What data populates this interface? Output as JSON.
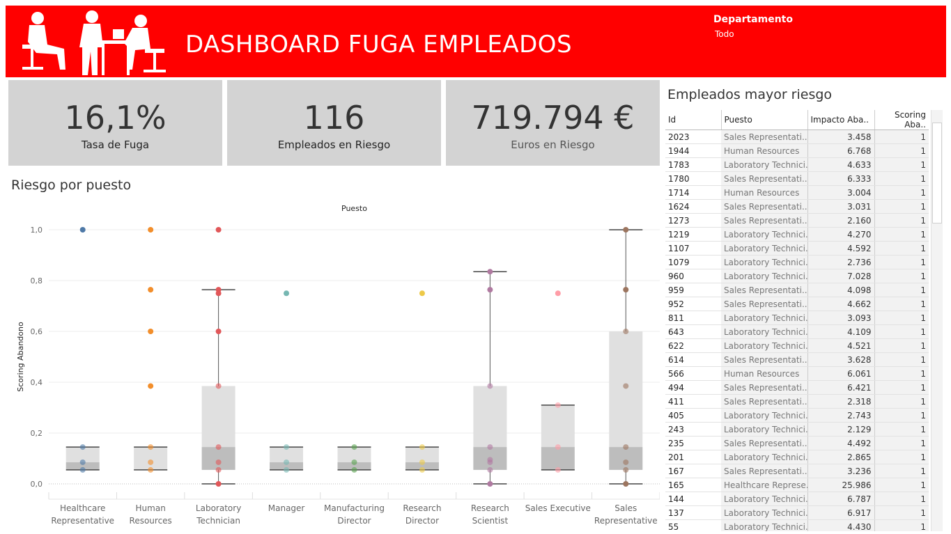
{
  "header": {
    "title": "DASHBOARD FUGA EMPLEADOS",
    "logo_icon": "office-workers-silhouette-logo",
    "background": "#ff0000"
  },
  "filter": {
    "label": "Departamento",
    "value": "Todo"
  },
  "kpis": [
    {
      "value": "16,1%",
      "label": "Tasa de Fuga"
    },
    {
      "value": "116",
      "label": "Empleados en Riesgo"
    },
    {
      "value": "719.794 €",
      "label": "Euros en Riesgo"
    }
  ],
  "chart_section_title": "Riesgo por puesto",
  "table_section_title": "Empleados mayor riesgo",
  "chart_data": {
    "type": "box",
    "title": "Puesto",
    "xlabel": "Puesto",
    "ylabel": "Scoring Abandono",
    "ylim": [
      0,
      1.0
    ],
    "yticks": [
      "0,0",
      "0,2",
      "0,4",
      "0,6",
      "0,8",
      "1,0"
    ],
    "categories": [
      {
        "name": "Healthcare Representative",
        "lines": [
          "Healthcare",
          "Representative"
        ],
        "color": "#4e79a7",
        "q0": 0.055,
        "q1": 0.055,
        "median": 0.085,
        "q3": 0.145,
        "q4": 0.145,
        "points": [
          1.0,
          0.145,
          0.085,
          0.055
        ]
      },
      {
        "name": "Human Resources",
        "lines": [
          "Human",
          "Resources"
        ],
        "color": "#f28e2b",
        "q0": 0.055,
        "q1": 0.055,
        "median": 0.055,
        "q3": 0.145,
        "q4": 0.145,
        "points": [
          1.0,
          0.764,
          0.6,
          0.385,
          0.145,
          0.085,
          0.055
        ]
      },
      {
        "name": "Laboratory Technician",
        "lines": [
          "Laboratory",
          "Technician"
        ],
        "color": "#e15759",
        "q0": 0.0,
        "q1": 0.055,
        "median": 0.145,
        "q3": 0.385,
        "q4": 0.764,
        "points": [
          1.0,
          0.764,
          0.75,
          0.6,
          0.385,
          0.145,
          0.085,
          0.055,
          0.0
        ]
      },
      {
        "name": "Manager",
        "lines": [
          "Manager"
        ],
        "color": "#76b7b2",
        "q0": 0.055,
        "q1": 0.055,
        "median": 0.085,
        "q3": 0.145,
        "q4": 0.145,
        "points": [
          0.75,
          0.145,
          0.085,
          0.055
        ]
      },
      {
        "name": "Manufacturing Director",
        "lines": [
          "Manufacturing",
          "Director"
        ],
        "color": "#59a14f",
        "q0": 0.055,
        "q1": 0.055,
        "median": 0.085,
        "q3": 0.145,
        "q4": 0.145,
        "points": [
          0.145,
          0.085,
          0.055
        ]
      },
      {
        "name": "Research Director",
        "lines": [
          "Research",
          "Director"
        ],
        "color": "#edc948",
        "q0": 0.055,
        "q1": 0.055,
        "median": 0.085,
        "q3": 0.145,
        "q4": 0.145,
        "points": [
          0.75,
          0.145,
          0.085,
          0.055
        ]
      },
      {
        "name": "Research Scientist",
        "lines": [
          "Research",
          "Scientist"
        ],
        "color": "#b07aa1",
        "q0": 0.0,
        "q1": 0.055,
        "median": 0.145,
        "q3": 0.385,
        "q4": 0.835,
        "points": [
          0.835,
          0.764,
          0.385,
          0.145,
          0.095,
          0.085,
          0.055,
          0.0
        ]
      },
      {
        "name": "Sales Executive",
        "lines": [
          "Sales Executive"
        ],
        "color": "#ff9da7",
        "q0": 0.055,
        "q1": 0.055,
        "median": 0.145,
        "q3": 0.31,
        "q4": 0.31,
        "points": [
          0.75,
          0.31,
          0.145,
          0.055
        ]
      },
      {
        "name": "Sales Representative",
        "lines": [
          "Sales",
          "Representative"
        ],
        "color": "#9c755f",
        "q0": 0.0,
        "q1": 0.055,
        "median": 0.145,
        "q3": 0.6,
        "q4": 1.0,
        "points": [
          1.0,
          0.764,
          0.6,
          0.385,
          0.145,
          0.085,
          0.055,
          0.0
        ]
      }
    ]
  },
  "table": {
    "columns": [
      "Id",
      "Puesto",
      "Impacto Aba..",
      "Scoring Aba.."
    ],
    "rows": [
      [
        "2023",
        "Sales Representati..",
        "3.458",
        "1"
      ],
      [
        "1944",
        "Human Resources",
        "6.768",
        "1"
      ],
      [
        "1783",
        "Laboratory Technici..",
        "4.633",
        "1"
      ],
      [
        "1780",
        "Sales Representati..",
        "6.333",
        "1"
      ],
      [
        "1714",
        "Human Resources",
        "3.004",
        "1"
      ],
      [
        "1624",
        "Sales Representati..",
        "3.031",
        "1"
      ],
      [
        "1273",
        "Sales Representati..",
        "2.160",
        "1"
      ],
      [
        "1219",
        "Laboratory Technici..",
        "4.270",
        "1"
      ],
      [
        "1107",
        "Laboratory Technici..",
        "4.592",
        "1"
      ],
      [
        "1079",
        "Laboratory Technici..",
        "2.736",
        "1"
      ],
      [
        "960",
        "Laboratory Technici..",
        "7.028",
        "1"
      ],
      [
        "959",
        "Sales Representati..",
        "4.098",
        "1"
      ],
      [
        "952",
        "Sales Representati..",
        "4.662",
        "1"
      ],
      [
        "811",
        "Laboratory Technici..",
        "3.093",
        "1"
      ],
      [
        "643",
        "Laboratory Technici..",
        "4.109",
        "1"
      ],
      [
        "622",
        "Laboratory Technici..",
        "4.521",
        "1"
      ],
      [
        "614",
        "Sales Representati..",
        "3.628",
        "1"
      ],
      [
        "566",
        "Human Resources",
        "6.061",
        "1"
      ],
      [
        "494",
        "Sales Representati..",
        "6.421",
        "1"
      ],
      [
        "411",
        "Sales Representati..",
        "2.318",
        "1"
      ],
      [
        "405",
        "Laboratory Technici..",
        "2.743",
        "1"
      ],
      [
        "243",
        "Laboratory Technici..",
        "2.129",
        "1"
      ],
      [
        "235",
        "Sales Representati..",
        "4.492",
        "1"
      ],
      [
        "201",
        "Laboratory Technici..",
        "2.865",
        "1"
      ],
      [
        "167",
        "Sales Representati..",
        "3.236",
        "1"
      ],
      [
        "165",
        "Healthcare Represe..",
        "25.986",
        "1"
      ],
      [
        "144",
        "Laboratory Technici..",
        "6.787",
        "1"
      ],
      [
        "137",
        "Laboratory Technici..",
        "6.917",
        "1"
      ],
      [
        "55",
        "Laboratory Technici..",
        "4.430",
        "1"
      ]
    ]
  }
}
